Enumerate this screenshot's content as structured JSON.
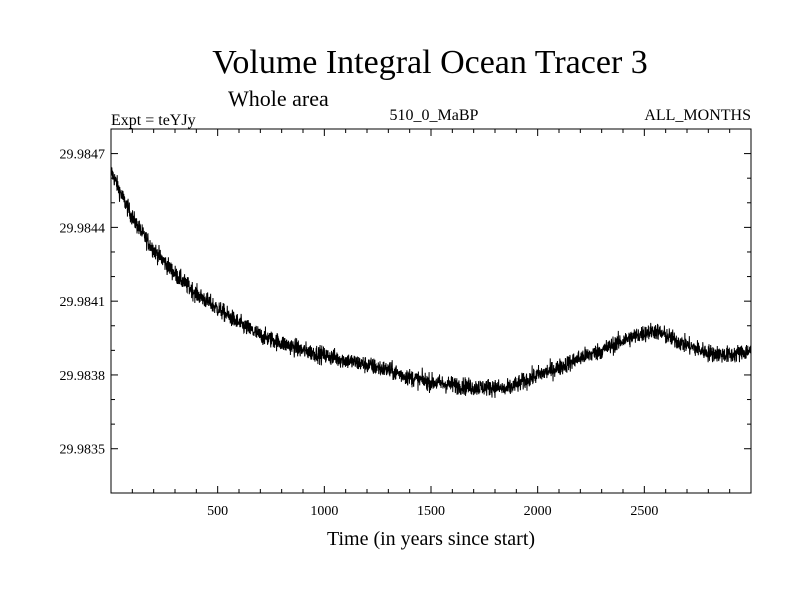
{
  "chart_data": {
    "type": "line",
    "title": "Volume Integral Ocean Tracer 3",
    "subtitle": "Whole area",
    "header_left": "Expt = teYJy",
    "header_center": "510_0_MaBP",
    "header_right": "ALL_MONTHS",
    "xlabel": "Time (in years since start)",
    "ylabel": "",
    "xlim": [
      0,
      3000
    ],
    "ylim": [
      29.98332,
      29.9848
    ],
    "x_ticks": [
      500,
      1000,
      1500,
      2000,
      2500
    ],
    "y_ticks": [
      "29.9835",
      "29.9838",
      "29.9841",
      "29.9844",
      "29.9847"
    ],
    "grid": false,
    "series": [
      {
        "name": "Volume Integral Ocean Tracer 3",
        "x": [
          0,
          50,
          100,
          150,
          200,
          250,
          300,
          400,
          500,
          600,
          700,
          800,
          900,
          1000,
          1100,
          1200,
          1300,
          1400,
          1500,
          1600,
          1700,
          1800,
          1850,
          1900,
          1950,
          2000,
          2100,
          2200,
          2300,
          2400,
          2500,
          2550,
          2600,
          2700,
          2800,
          2900,
          3000
        ],
        "values": [
          29.98463,
          29.98453,
          29.98444,
          29.98437,
          29.98431,
          29.98426,
          29.98421,
          29.98413,
          29.98407,
          29.98401,
          29.98396,
          29.98393,
          29.9839,
          29.98388,
          29.98386,
          29.98384,
          29.98382,
          29.98379,
          29.98377,
          29.98376,
          29.98375,
          29.98375,
          29.98374,
          29.98376,
          29.98378,
          29.9838,
          29.98383,
          29.98387,
          29.9839,
          29.98394,
          29.98397,
          29.98398,
          29.98396,
          29.98392,
          29.98389,
          29.98388,
          29.9839
        ],
        "noise": 3.5e-05,
        "color": "#000000"
      }
    ]
  }
}
